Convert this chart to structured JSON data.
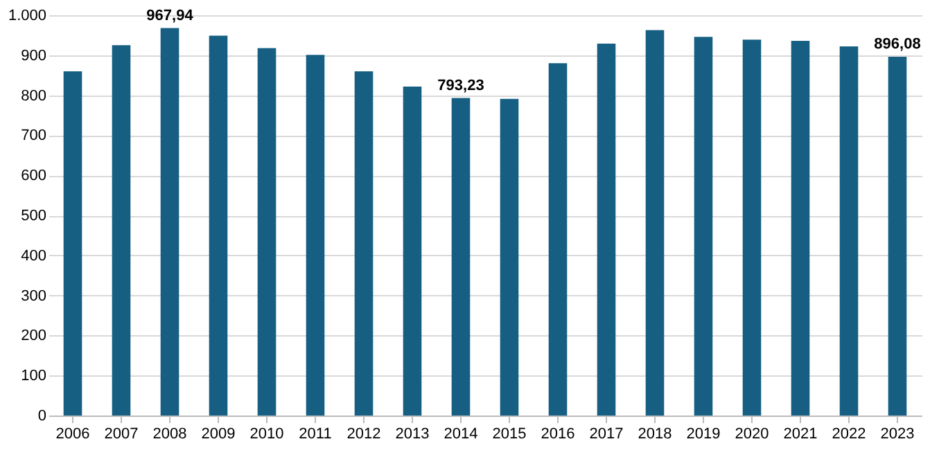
{
  "chart_data": {
    "type": "bar",
    "categories": [
      "2006",
      "2007",
      "2008",
      "2009",
      "2010",
      "2011",
      "2012",
      "2013",
      "2014",
      "2015",
      "2016",
      "2017",
      "2018",
      "2019",
      "2020",
      "2021",
      "2022",
      "2023"
    ],
    "values": [
      860,
      925,
      967.94,
      949,
      918,
      901,
      860,
      822,
      793.23,
      791,
      880,
      929,
      963,
      946,
      939,
      936,
      922,
      896.08
    ],
    "value_labels": [
      null,
      null,
      "967,94",
      null,
      null,
      null,
      null,
      null,
      "793,23",
      null,
      null,
      null,
      null,
      null,
      null,
      null,
      null,
      "896,08"
    ],
    "color": "#165f82",
    "ylim": [
      0,
      1000
    ],
    "yticks": [
      0,
      100,
      200,
      300,
      400,
      500,
      600,
      700,
      800,
      900,
      {
        "value": 1000,
        "label": "1.000"
      }
    ],
    "grid": "y"
  }
}
